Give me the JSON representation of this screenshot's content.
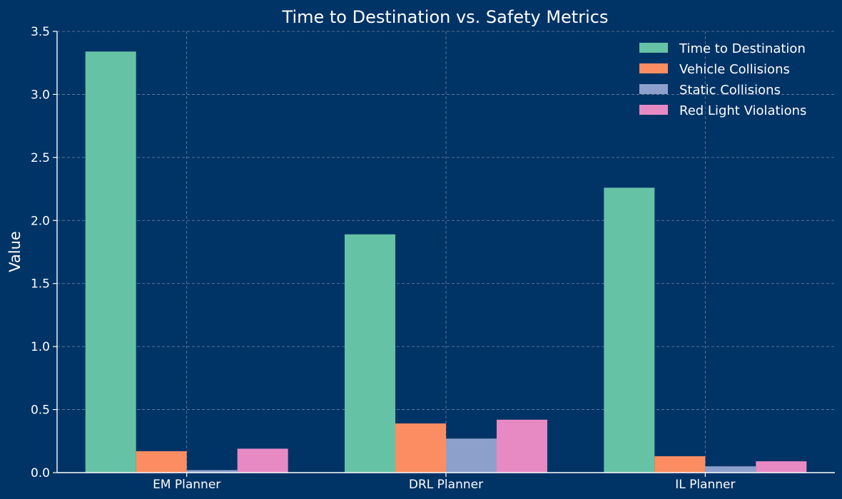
{
  "chart_data": {
    "type": "bar",
    "title": "Time to Destination vs. Safety Metrics",
    "xlabel": "",
    "ylabel": "Value",
    "categories": [
      "EM Planner",
      "DRL Planner",
      "IL Planner"
    ],
    "series": [
      {
        "name": "Time to Destination",
        "values": [
          3.34,
          1.89,
          2.26
        ],
        "color": "#66c2a5"
      },
      {
        "name": "Vehicle Collisions",
        "values": [
          0.17,
          0.39,
          0.13
        ],
        "color": "#fc8d62"
      },
      {
        "name": "Static Collisions",
        "values": [
          0.02,
          0.27,
          0.05
        ],
        "color": "#8da0cb"
      },
      {
        "name": "Red Light Violations",
        "values": [
          0.19,
          0.42,
          0.09
        ],
        "color": "#e78ac3"
      }
    ],
    "ylim": [
      0,
      3.5
    ],
    "yticks": [
      "0.0",
      "0.5",
      "1.0",
      "1.5",
      "2.0",
      "2.5",
      "3.0",
      "3.5"
    ],
    "grid": true,
    "legend_position": "top-right"
  },
  "colors": {
    "background": "#003366",
    "text": "#ffffff",
    "grid": "#8a9bb5"
  }
}
